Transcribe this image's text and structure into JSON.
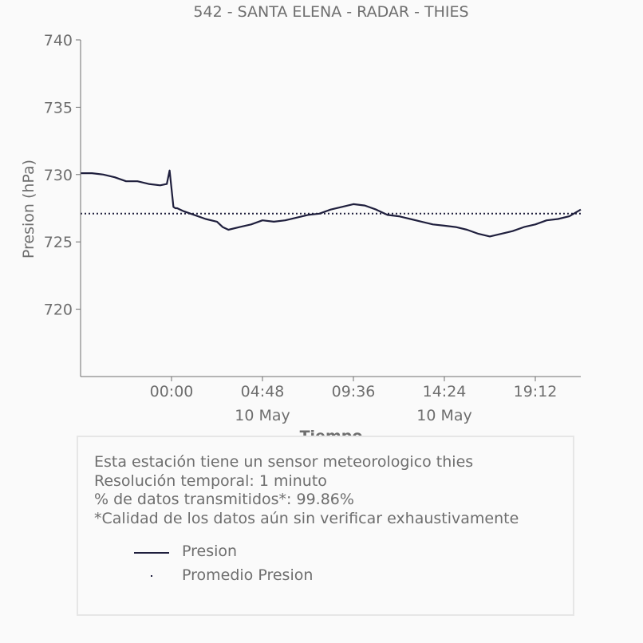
{
  "chart_data": {
    "type": "line",
    "title": "542 - SANTA ELENA - RADAR - THIES",
    "xlabel": "Tiempo",
    "ylabel": "Presion (hPa)",
    "x_unit": "hours (day 1 = 9 May, day 2 = 10 May)",
    "xlim": [
      "09 May 19:12",
      "10 May 21:36"
    ],
    "ylim": [
      715,
      740
    ],
    "y_ticks": [
      720,
      725,
      730,
      735,
      740
    ],
    "x_ticks": [
      {
        "label": "00:00",
        "sub": ""
      },
      {
        "label": "04:48",
        "sub": "10 May"
      },
      {
        "label": "09:36",
        "sub": ""
      },
      {
        "label": "14:24",
        "sub": "10 May"
      },
      {
        "label": "19:12",
        "sub": ""
      }
    ],
    "grid": false,
    "series": [
      {
        "name": "Presion",
        "color": "#1f1f3d",
        "style": "solid",
        "x": [
          "09 May 19:12",
          "09 May 19:48",
          "09 May 20:24",
          "09 May 21:00",
          "09 May 21:36",
          "09 May 22:12",
          "09 May 22:48",
          "09 May 23:24",
          "09 May 23:45",
          "09 May 23:54",
          "10 May 00:06",
          "10 May 00:12",
          "10 May 00:18",
          "10 May 00:36",
          "10 May 01:12",
          "10 May 01:48",
          "10 May 02:24",
          "10 May 02:42",
          "10 May 03:00",
          "10 May 03:36",
          "10 May 04:12",
          "10 May 04:48",
          "10 May 05:24",
          "10 May 06:00",
          "10 May 06:36",
          "10 May 07:12",
          "10 May 07:48",
          "10 May 08:24",
          "10 May 09:00",
          "10 May 09:36",
          "10 May 10:12",
          "10 May 10:48",
          "10 May 11:24",
          "10 May 12:00",
          "10 May 12:36",
          "10 May 13:12",
          "10 May 13:48",
          "10 May 14:24",
          "10 May 15:00",
          "10 May 15:36",
          "10 May 16:12",
          "10 May 16:48",
          "10 May 17:24",
          "10 May 18:00",
          "10 May 18:36",
          "10 May 19:12",
          "10 May 19:48",
          "10 May 20:24",
          "10 May 21:00",
          "10 May 21:36"
        ],
        "values": [
          730.1,
          730.1,
          730.0,
          729.8,
          729.5,
          729.5,
          729.3,
          729.2,
          729.3,
          730.3,
          727.6,
          727.5,
          727.5,
          727.3,
          727.0,
          726.7,
          726.5,
          726.1,
          725.9,
          726.1,
          726.3,
          726.6,
          726.5,
          726.6,
          726.8,
          727.0,
          727.1,
          727.4,
          727.6,
          727.8,
          727.7,
          727.4,
          727.0,
          726.9,
          726.7,
          726.5,
          726.3,
          726.2,
          726.1,
          725.9,
          725.6,
          725.4,
          725.6,
          725.8,
          726.1,
          726.3,
          726.6,
          726.7,
          726.9,
          727.4
        ]
      },
      {
        "name": "Promedio Presion",
        "color": "#1f1f3d",
        "style": "dotted",
        "x": [
          "09 May 19:12",
          "10 May 21:36"
        ],
        "values": [
          727.1,
          727.1
        ]
      }
    ]
  },
  "info": {
    "lines": [
      "Esta estación tiene un sensor meteorologico thies",
      "Resolución temporal: 1 minuto",
      "% de datos transmitidos*: 99.86%",
      "*Calidad de los datos aún sin verificar exhaustivamente"
    ]
  }
}
